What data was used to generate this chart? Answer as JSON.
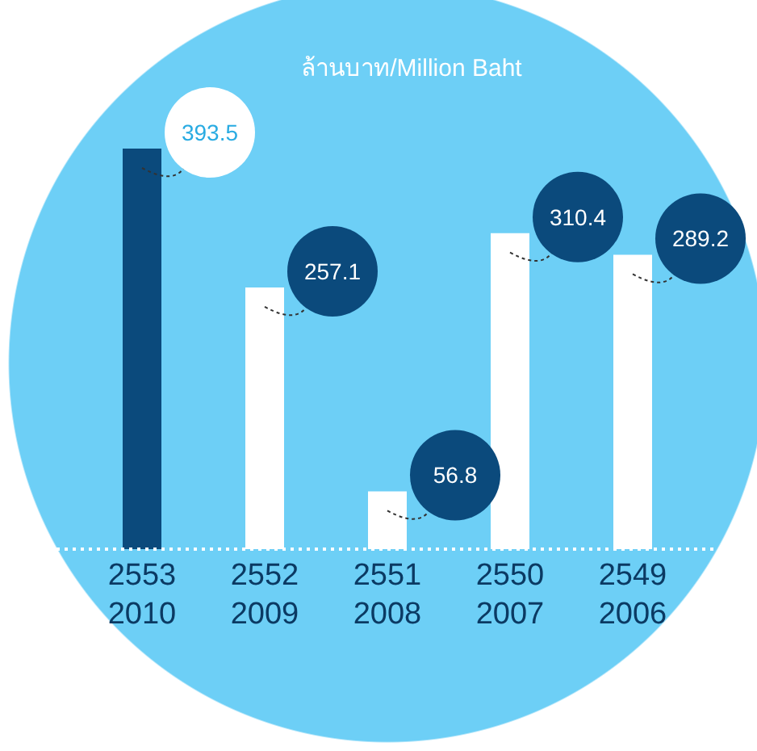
{
  "chart_data": {
    "type": "bar",
    "title": "ล้านบาท/Million Baht",
    "categories": [
      "2553\n2010",
      "2552\n2009",
      "2551\n2008",
      "2550\n2007",
      "2549\n2006"
    ],
    "values": [
      393.5,
      257.1,
      56.8,
      310.4,
      289.2
    ],
    "colors": [
      "#0b4a7c",
      "#ffffff",
      "#ffffff",
      "#ffffff",
      "#ffffff"
    ],
    "data_labels": true,
    "grid": false,
    "legend": false
  }
}
